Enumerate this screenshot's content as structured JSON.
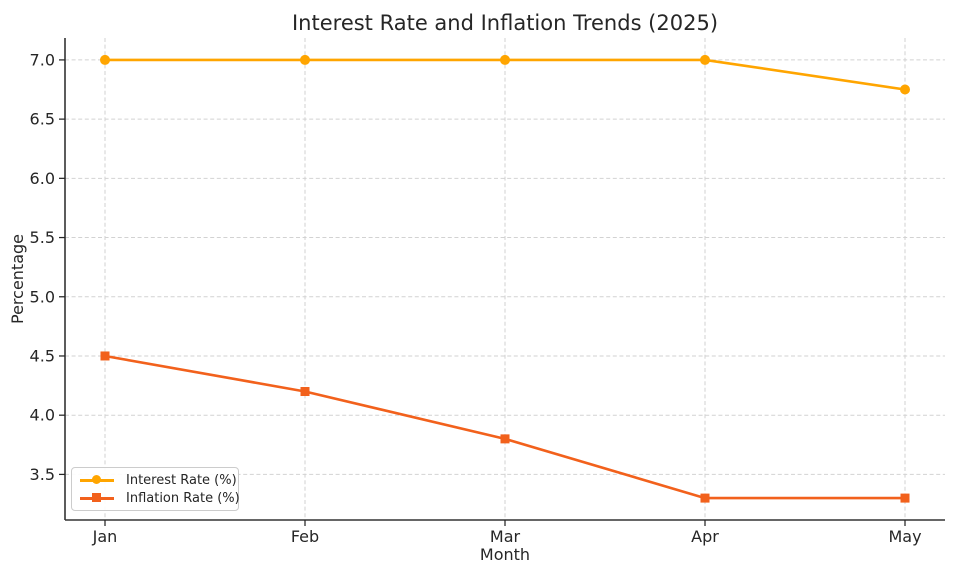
{
  "figure": {
    "title": "Interest Rate and Inflation Trends (2025)",
    "xlabel": "Month",
    "ylabel": "Percentage"
  },
  "chart_data": {
    "type": "line",
    "title": "Interest Rate and Inflation Trends (2025)",
    "xlabel": "Month",
    "ylabel": "Percentage",
    "categories": [
      "Jan",
      "Feb",
      "Mar",
      "Apr",
      "May"
    ],
    "series": [
      {
        "name": "Interest Rate (%)",
        "color": "#FFA500",
        "marker": "circle",
        "values": [
          7.0,
          7.0,
          7.0,
          7.0,
          6.75
        ]
      },
      {
        "name": "Inflation Rate (%)",
        "color": "#F2611C",
        "marker": "square",
        "values": [
          4.5,
          4.2,
          3.8,
          3.3,
          3.3
        ]
      }
    ],
    "yticks": [
      3.5,
      4.0,
      4.5,
      5.0,
      5.5,
      6.0,
      6.5,
      7.0
    ],
    "ytick_labels": [
      "3.5",
      "4.0",
      "4.5",
      "5.0",
      "5.5",
      "6.0",
      "6.5",
      "7.0"
    ],
    "ylim": [
      3.115,
      7.185
    ],
    "grid": true,
    "grid_style": "dashed",
    "legend_position": "lower left"
  },
  "colors": {
    "grid": "#d2d2d2",
    "spine": "#333333",
    "tick": "#262626",
    "text": "#262626",
    "legend_border": "#cccccc",
    "background": "#ffffff"
  }
}
